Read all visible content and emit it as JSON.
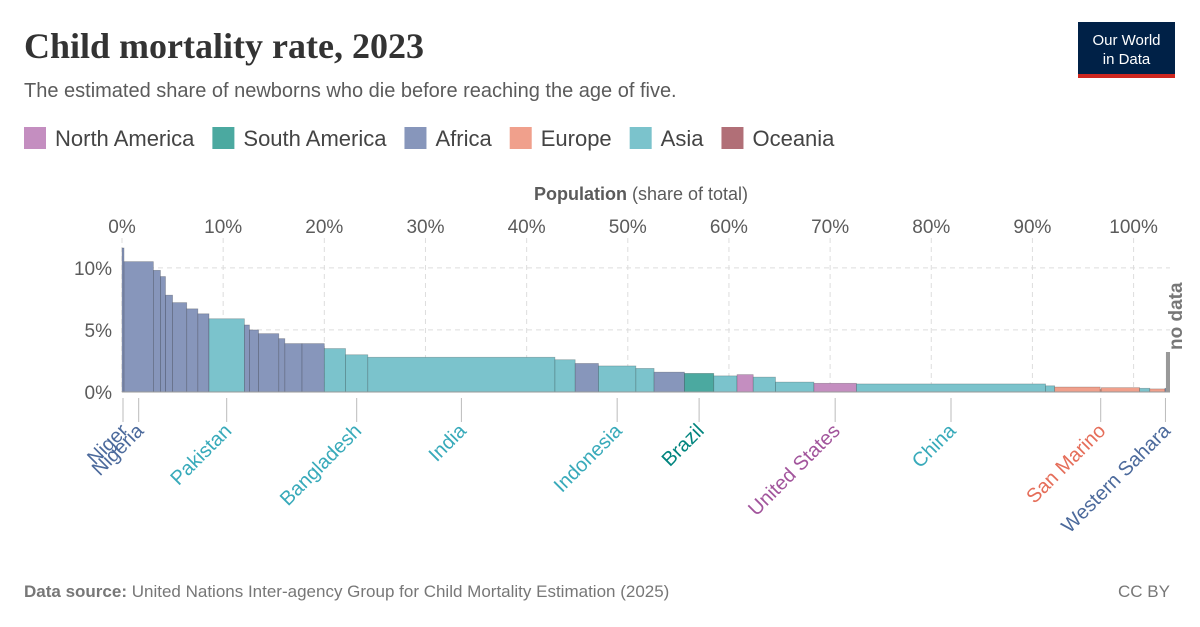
{
  "chart_data": {
    "type": "variwide",
    "title": "Child mortality rate, 2023",
    "subtitle": "The estimated share of newborns who die before reaching the age of five.",
    "logo": [
      "Our World",
      "in Data"
    ],
    "xlabel": "Population",
    "xlabel_note": "(share of total)",
    "legend": [
      {
        "name": "North America",
        "color": "#c48ec0",
        "label_color": "#a2559c"
      },
      {
        "name": "South America",
        "color": "#4ba9a0",
        "label_color": "#00847e"
      },
      {
        "name": "Africa",
        "color": "#8796bb",
        "label_color": "#4c6a9c"
      },
      {
        "name": "Europe",
        "color": "#f0a08c",
        "label_color": "#e56e5a"
      },
      {
        "name": "Asia",
        "color": "#7bc3cc",
        "label_color": "#38aaba"
      },
      {
        "name": "Oceania",
        "color": "#b16f77",
        "label_color": "#9a4a55"
      }
    ],
    "categories": [
      "Niger",
      "Nigeria",
      null,
      null,
      null,
      null,
      null,
      null,
      "Pakistan",
      null,
      null,
      null,
      null,
      null,
      null,
      null,
      "Bangladesh",
      "India",
      null,
      null,
      "Indonesia",
      null,
      null,
      "Brazil",
      null,
      null,
      null,
      null,
      "United States",
      "China",
      null,
      null,
      "San Marino",
      null,
      null,
      null,
      "Western Sahara"
    ],
    "regions": [
      "Africa",
      "Africa",
      "Africa",
      "Africa",
      "Africa",
      "Africa",
      "Africa",
      "Africa",
      "Asia",
      "Africa",
      "Africa",
      "Africa",
      "Africa",
      "Africa",
      "Africa",
      "Asia",
      "Asia",
      "Asia",
      "Asia",
      "Africa",
      "Asia",
      "Asia",
      "Africa",
      "South America",
      "Asia",
      "North America",
      "Asia",
      "Asia",
      "North America",
      "Asia",
      "Asia",
      "Europe",
      "Europe",
      "Europe",
      "Asia",
      "Europe",
      "Africa"
    ],
    "widths": [
      0.2,
      2.9,
      0.7,
      0.5,
      0.7,
      1.4,
      1.1,
      1.1,
      3.5,
      0.5,
      0.9,
      2.0,
      0.6,
      1.7,
      2.2,
      2.1,
      2.2,
      18.5,
      2.0,
      2.3,
      3.7,
      1.8,
      3.0,
      2.9,
      2.3,
      1.6,
      2.2,
      3.8,
      4.2,
      18.7,
      0.9,
      4.5,
      0.1,
      3.8,
      1.0,
      1.5,
      0.1
    ],
    "values": [
      11.6,
      10.5,
      9.8,
      9.3,
      7.8,
      7.2,
      6.7,
      6.3,
      5.9,
      5.4,
      5.0,
      4.7,
      4.3,
      3.9,
      3.9,
      3.5,
      3.0,
      2.8,
      2.6,
      2.3,
      2.1,
      1.9,
      1.6,
      1.5,
      1.3,
      1.4,
      1.2,
      0.8,
      0.7,
      0.65,
      0.5,
      0.4,
      0.2,
      0.35,
      0.3,
      0.25,
      0.3
    ],
    "no_data": {
      "label": "no data",
      "width": 0.4
    },
    "xlim": [
      0,
      103.6
    ],
    "xticks": [
      {
        "value": 0,
        "label": "0%"
      },
      {
        "value": 10,
        "label": "10%"
      },
      {
        "value": 20,
        "label": "20%"
      },
      {
        "value": 30,
        "label": "30%"
      },
      {
        "value": 40,
        "label": "40%"
      },
      {
        "value": 50,
        "label": "50%"
      },
      {
        "value": 60,
        "label": "60%"
      },
      {
        "value": 70,
        "label": "70%"
      },
      {
        "value": 80,
        "label": "80%"
      },
      {
        "value": 90,
        "label": "90%"
      },
      {
        "value": 100,
        "label": "100%"
      }
    ],
    "ylim": [
      0,
      12
    ],
    "yticks": [
      {
        "value": 0,
        "label": "0%"
      },
      {
        "value": 5,
        "label": "5%"
      },
      {
        "value": 10,
        "label": "10%"
      }
    ],
    "grid": true,
    "source_label": "Data source:",
    "source": "United Nations Inter-agency Group for Child Mortality Estimation (2025)",
    "license": "CC BY"
  }
}
